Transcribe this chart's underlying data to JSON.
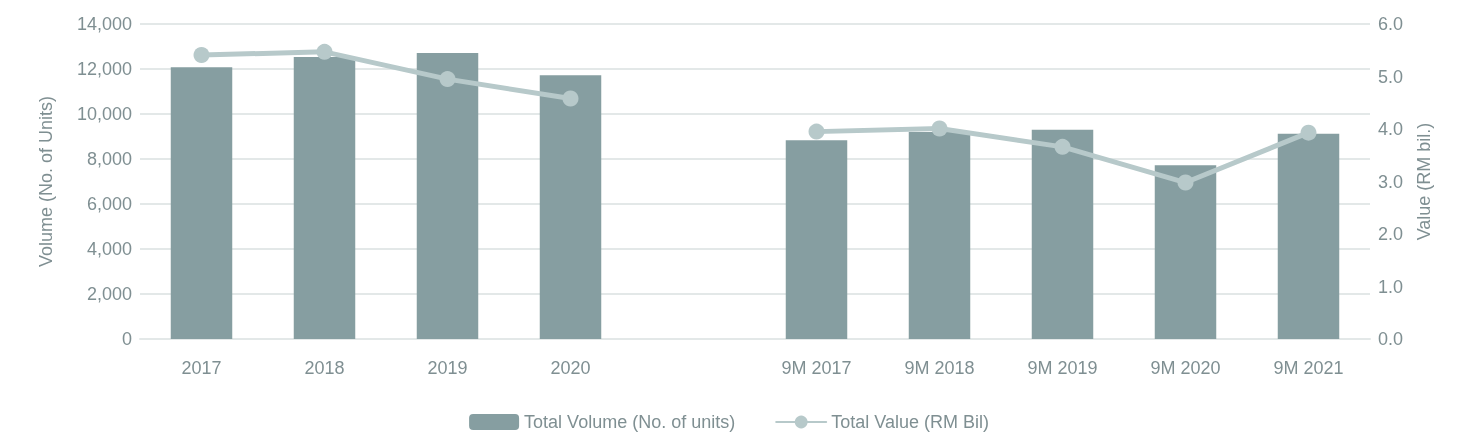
{
  "chart_data": {
    "type": "bar",
    "categories": [
      "2017",
      "2018",
      "2019",
      "2020",
      null,
      "9M 2017",
      "9M 2018",
      "9M 2019",
      "9M 2020",
      "9M 2021"
    ],
    "series": [
      {
        "name": "Total Volume (No. of units)",
        "color": "#869ea1",
        "values": [
          12080,
          12530,
          12710,
          11720,
          null,
          8830,
          9200,
          9300,
          7720,
          9120
        ]
      },
      {
        "name": "Total Value (RM Bil)",
        "type": "line",
        "axis": "y2",
        "color": "#b7c9ca",
        "values": [
          5.41,
          5.47,
          4.95,
          4.58,
          null,
          3.95,
          4.01,
          3.66,
          2.98,
          3.93
        ]
      }
    ],
    "ylabel": "Volume (No. of Units)",
    "y2label": "Value (RM bil.)",
    "ylim": [
      0,
      14000
    ],
    "yticks": [
      0,
      {
        "value": 2000,
        "label": "2,000"
      },
      {
        "value": 4000,
        "label": "4,000"
      },
      {
        "value": 6000,
        "label": "6,000"
      },
      {
        "value": 8000,
        "label": "8,000"
      },
      {
        "value": 10000,
        "label": "10,000"
      },
      {
        "value": 12000,
        "label": "12,000"
      },
      {
        "value": 14000,
        "label": "14,000"
      }
    ],
    "y2lim": [
      0,
      6
    ],
    "y2ticks": [
      {
        "value": 0,
        "label": "0.0"
      },
      {
        "value": 1,
        "label": "1.0"
      },
      {
        "value": 2,
        "label": "2.0"
      },
      {
        "value": 3,
        "label": "3.0"
      },
      {
        "value": 4,
        "label": "4.0"
      },
      {
        "value": 5,
        "label": "5.0"
      },
      {
        "value": 6,
        "label": "6.0"
      }
    ],
    "grid": "y",
    "legend": "bottom",
    "marker": "circle"
  }
}
